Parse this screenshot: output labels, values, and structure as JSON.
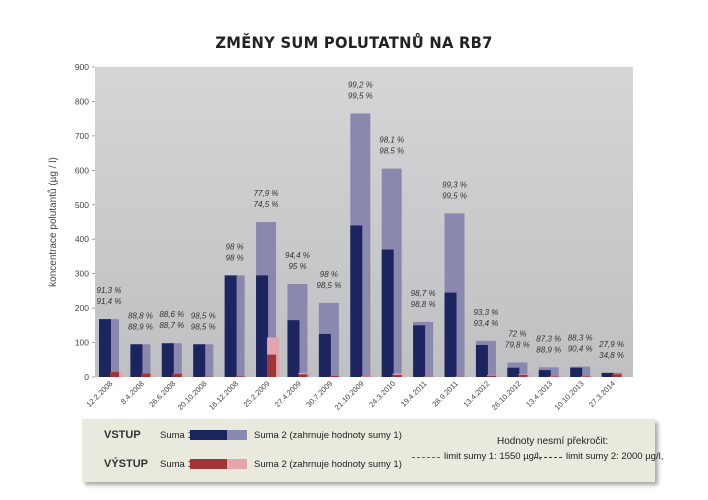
{
  "chart_data": {
    "type": "bar",
    "title": "ZMĚNY SUM POLUTATNŮ NA RB7",
    "ylabel": "koncentrace polutantů (µg / l)",
    "xlabel": "",
    "ylim": [
      0,
      900
    ],
    "yticks": [
      0,
      100,
      200,
      300,
      400,
      500,
      600,
      700,
      800,
      900
    ],
    "grid": false,
    "categories": [
      "12.2.2008",
      "8.4.2008",
      "26.6.2008",
      "20.10.2008",
      "16.12.2008",
      "25.2.2009",
      "27.4.2009",
      "30.7.2009",
      "21.10.2009",
      "24.3.2010",
      "19.4.2011",
      "28.9.2011",
      "13.4.2012",
      "26.10.2012",
      "13.4.2013",
      "10.10.2013",
      "27.3.2014"
    ],
    "series": [
      {
        "name": "VSTUP Suma 1",
        "values": [
          168,
          95,
          98,
          95,
          295,
          295,
          165,
          125,
          440,
          370,
          150,
          245,
          93,
          27,
          20,
          27,
          12
        ]
      },
      {
        "name": "VSTUP Suma 2 (zahrnuje hodnoty sumy 1)",
        "values": [
          168,
          95,
          98,
          95,
          295,
          450,
          270,
          215,
          765,
          605,
          160,
          475,
          105,
          42,
          28,
          30,
          12
        ]
      },
      {
        "name": "VÝSTUP Suma 1",
        "values": [
          15,
          10,
          10,
          1,
          2,
          65,
          8,
          3,
          1,
          6,
          1,
          1,
          4,
          6,
          2,
          2,
          8
        ]
      },
      {
        "name": "VÝSTUP Suma 2 (zahrnuje hodnoty sumy 1)",
        "values": [
          15,
          10,
          11,
          1,
          2,
          115,
          12,
          3,
          3,
          10,
          2,
          2,
          6,
          8,
          3,
          3,
          8
        ]
      }
    ],
    "annotations": [
      {
        "line1": "91,3 %",
        "line2": "91,4 %"
      },
      {
        "line1": "88,8 %",
        "line2": "88,9 %"
      },
      {
        "line1": "88,6 %",
        "line2": "88,7 %"
      },
      {
        "line1": "98,5 %",
        "line2": "98,5 %"
      },
      {
        "line1": "98 %",
        "line2": "98 %"
      },
      {
        "line1": "77,9 %",
        "line2": "74,5 %"
      },
      {
        "line1": "94,4 %",
        "line2": "95 %"
      },
      {
        "line1": "98 %",
        "line2": "98,5 %"
      },
      {
        "line1": "99,2 %",
        "line2": "99,5 %"
      },
      {
        "line1": "98,1 %",
        "line2": "98,5 %"
      },
      {
        "line1": "98,7 %",
        "line2": "98,8 %"
      },
      {
        "line1": "99,3 %",
        "line2": "99,5 %"
      },
      {
        "line1": "93,3 %",
        "line2": "93,4 %"
      },
      {
        "line1": "72 %",
        "line2": "79,8 %"
      },
      {
        "line1": "87,3 %",
        "line2": "88,9 %"
      },
      {
        "line1": "88,3 %",
        "line2": "90,4 %"
      },
      {
        "line1": "27,9 %",
        "line2": "34,8 %"
      }
    ],
    "colors": {
      "vstup_suma1": "#1d2560",
      "vstup_suma2": "#8a88ae",
      "vystup_suma1": "#a03537",
      "vystup_suma2": "#e2a5ab",
      "plot_bg": "#c7c8c9",
      "limit1": "#cc3333",
      "limit2": "#8b1a1a"
    }
  },
  "legend": {
    "vstup_label": "VSTUP",
    "vystup_label": "VÝSTUP",
    "suma1_label": "Suma 1",
    "suma2_label": "Suma 2 (zahrnuje hodnoty sumy 1)",
    "limits_title": "Hodnoty nesmí překročit:",
    "limit1_label": "limit sumy 1: 1550 µg/l,",
    "limit2_label": "limit sumy 2: 2000 µg/l,"
  }
}
